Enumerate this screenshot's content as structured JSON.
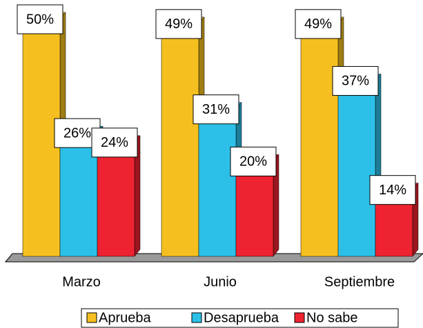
{
  "chart_data": {
    "type": "bar",
    "categories": [
      "Marzo",
      "Junio",
      "Septiembre"
    ],
    "series": [
      {
        "name": "Aprueba",
        "color": "#f5c01f",
        "values": [
          50,
          49,
          49
        ],
        "value_labels": [
          "50%",
          "49%",
          "49%"
        ]
      },
      {
        "name": "Desaprueba",
        "color": "#2cc0e8",
        "values": [
          26,
          31,
          37
        ],
        "value_labels": [
          "26%",
          "31%",
          "37%"
        ]
      },
      {
        "name": "No sabe",
        "color": "#ee2230",
        "values": [
          24,
          20,
          14
        ],
        "value_labels": [
          "24%",
          "20%",
          "14%"
        ]
      }
    ],
    "ylim": [
      0,
      50
    ],
    "legend": "bottom"
  }
}
